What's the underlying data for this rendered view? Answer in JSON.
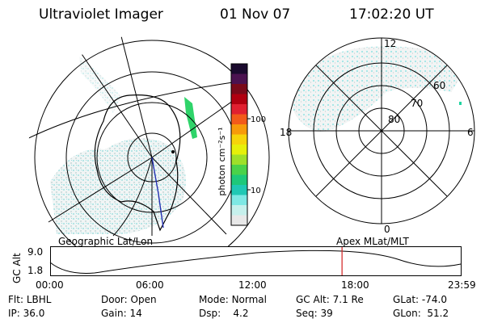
{
  "header": {
    "title": "Ultraviolet Imager",
    "date": "01 Nov 07",
    "time": "17:02:20 UT"
  },
  "colorbar": {
    "label": "photon cm⁻²s⁻¹",
    "ticks": [
      "100",
      "10"
    ],
    "colors": [
      "#1a0a2e",
      "#4b1250",
      "#7a0a1a",
      "#b00010",
      "#e02030",
      "#f25a1a",
      "#f79a0a",
      "#f6d40a",
      "#e6f00a",
      "#9ee02a",
      "#4ad24a",
      "#1ec87a",
      "#20c8b4",
      "#7ee8e4",
      "#c6f0ec",
      "#e8e8e8"
    ]
  },
  "left_panel": {
    "label": "Geographic Lat/Lon"
  },
  "right_panel": {
    "label": "Apex MLat/MLT",
    "mlt_labels": {
      "top": "12",
      "bottom": "0",
      "left": "18",
      "right": "6"
    },
    "mlat_labels": [
      "60",
      "70",
      "80"
    ]
  },
  "timeline": {
    "y_label": "GC Alt",
    "y_ticks": [
      "9.0",
      "1.8"
    ],
    "x_ticks": [
      "00:00",
      "06:00",
      "12:00",
      "18:00",
      "23:59"
    ],
    "current_time_fraction": 0.7099,
    "marker_color": "#d22020"
  },
  "info": {
    "row1": [
      {
        "label": "Flt:",
        "value": "LBHL"
      },
      {
        "label": "Door:",
        "value": "Open"
      },
      {
        "label": "Mode:",
        "value": "Normal"
      },
      {
        "label": "GC Alt:",
        "value": "7.1 Re"
      },
      {
        "label": "GLat:",
        "value": "-74.0"
      }
    ],
    "row2": [
      {
        "label": "IP:",
        "value": "36.0"
      },
      {
        "label": "Gain:",
        "value": "14"
      },
      {
        "label": "Dsp:",
        "value": "4.2"
      },
      {
        "label": "Seq:",
        "value": "39"
      },
      {
        "label": "GLon:",
        "value": "51.2"
      }
    ]
  }
}
